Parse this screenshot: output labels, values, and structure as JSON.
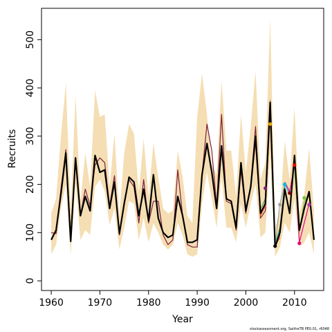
{
  "chart_data": {
    "type": "line",
    "title": "",
    "xlabel": "Year",
    "ylabel": "Recruits",
    "xlim": [
      1958,
      2016
    ],
    "ylim": [
      -20,
      565
    ],
    "x_ticks": [
      1960,
      1970,
      1980,
      1990,
      2000,
      2010
    ],
    "y_ticks": [
      0,
      100,
      200,
      300,
      400,
      500
    ],
    "grid": false,
    "band_color": "#F5DEB3",
    "band": {
      "x": [
        1960,
        1961,
        1962,
        1963,
        1964,
        1965,
        1966,
        1967,
        1968,
        1969,
        1970,
        1971,
        1972,
        1973,
        1974,
        1975,
        1976,
        1977,
        1978,
        1979,
        1980,
        1981,
        1982,
        1983,
        1984,
        1985,
        1986,
        1987,
        1988,
        1989,
        1990,
        1991,
        1992,
        1993,
        1994,
        1995,
        1996,
        1997,
        1998,
        1999,
        2000,
        2001,
        2002,
        2003,
        2004,
        2005,
        2006,
        2007,
        2008,
        2009,
        2010,
        2011,
        2012,
        2013,
        2014
      ],
      "lower": [
        55,
        75,
        150,
        200,
        55,
        200,
        85,
        105,
        95,
        195,
        210,
        185,
        115,
        150,
        65,
        110,
        165,
        160,
        85,
        130,
        80,
        120,
        100,
        75,
        65,
        75,
        120,
        95,
        55,
        50,
        55,
        160,
        225,
        170,
        110,
        215,
        110,
        110,
        80,
        160,
        110,
        160,
        200,
        90,
        100,
        260,
        50,
        70,
        120,
        100,
        170,
        70,
        80,
        100,
        55
      ],
      "upper": [
        140,
        170,
        300,
        410,
        145,
        385,
        165,
        265,
        195,
        395,
        340,
        345,
        195,
        305,
        135,
        265,
        325,
        305,
        185,
        295,
        175,
        285,
        215,
        150,
        140,
        145,
        270,
        215,
        135,
        120,
        340,
        430,
        345,
        240,
        220,
        415,
        270,
        270,
        175,
        345,
        225,
        320,
        435,
        210,
        245,
        545,
        110,
        145,
        290,
        210,
        360,
        140,
        180,
        275,
        145
      ]
    },
    "series": [
      {
        "color": "#000000",
        "x": [
          1960,
          1961,
          1962,
          1963,
          1964,
          1965,
          1966,
          1967,
          1968,
          1969,
          1970,
          1971,
          1972,
          1973,
          1974,
          1975,
          1976,
          1977,
          1978,
          1979,
          1980,
          1981,
          1982,
          1983,
          1984,
          1985,
          1986,
          1987,
          1988,
          1989,
          1990,
          1991,
          1992,
          1993,
          1994,
          1995,
          1996,
          1997,
          1998,
          1999,
          2000,
          2001,
          2002,
          2003,
          2004,
          2005,
          2006,
          2007,
          2008,
          2009,
          2010,
          2011,
          2012,
          2013,
          2014
        ],
        "y": [
          85,
          105,
          180,
          265,
          82,
          255,
          135,
          175,
          145,
          260,
          225,
          230,
          150,
          205,
          98,
          160,
          215,
          205,
          135,
          190,
          125,
          220,
          130,
          100,
          90,
          95,
          175,
          135,
          80,
          80,
          85,
          220,
          285,
          225,
          150,
          280,
          170,
          165,
          110,
          245,
          145,
          195,
          300,
          140,
          160,
          370,
          70,
          100,
          190,
          140,
          260,
          105,
          150,
          185,
          85
        ]
      },
      {
        "color": "#7B1E3B",
        "x": [
          1960,
          1961,
          1962,
          1963,
          1964,
          1965,
          1966,
          1967,
          1968,
          1969,
          1970,
          1971,
          1972,
          1973,
          1974,
          1975,
          1976,
          1977,
          1978,
          1979,
          1980,
          1981,
          1982,
          1983,
          1984,
          1985,
          1986,
          1987,
          1988,
          1989,
          1990,
          1991,
          1992,
          1993,
          1994,
          1995,
          1996,
          1997,
          1998,
          1999,
          2000,
          2001,
          2002,
          2003,
          2004,
          2005,
          2006,
          2007
        ],
        "y": [
          100,
          98,
          190,
          272,
          95,
          255,
          135,
          190,
          155,
          240,
          255,
          245,
          155,
          218,
          95,
          165,
          210,
          195,
          120,
          210,
          120,
          165,
          165,
          95,
          75,
          85,
          230,
          135,
          75,
          70,
          70,
          220,
          325,
          270,
          155,
          345,
          165,
          160,
          105,
          230,
          140,
          200,
          320,
          130,
          145,
          350,
          75,
          95
        ]
      },
      {
        "color": "#E8602C",
        "x": [
          2002,
          2003,
          2004,
          2005,
          2006,
          2007
        ],
        "y": [
          280,
          135,
          155,
          340,
          72,
          90
        ]
      },
      {
        "color": "#4EA24E",
        "x": [
          2003,
          2004,
          2005,
          2006,
          2007,
          2008
        ],
        "y": [
          148,
          170,
          355,
          75,
          110,
          195
        ]
      },
      {
        "color": "#A0A0A0",
        "x": [
          2004,
          2005,
          2006,
          2007,
          2008
        ],
        "y": [
          190,
          375,
          72,
          160,
          200
        ]
      },
      {
        "color": "#00B8E6",
        "x": [
          2005,
          2006,
          2007,
          2008,
          2009
        ],
        "y": [
          360,
          72,
          105,
          200,
          180
        ]
      },
      {
        "color": "#E6007E",
        "x": [
          2008,
          2009,
          2010,
          2011,
          2012,
          2013
        ],
        "y": [
          205,
          185,
          240,
          80,
          120,
          160
        ]
      },
      {
        "color": "#7FBF3F",
        "x": [
          2010,
          2011,
          2012,
          2013
        ],
        "y": [
          230,
          100,
          165,
          175
        ]
      }
    ],
    "end_points": [
      {
        "x": 2004,
        "y": 192,
        "color": "#7B1E7B"
      },
      {
        "x": 2005,
        "y": 325,
        "color": "#E6A800"
      },
      {
        "x": 2006,
        "y": 72,
        "color": "#000000"
      },
      {
        "x": 2007,
        "y": 158,
        "color": "#A0A0A0"
      },
      {
        "x": 2008,
        "y": 200,
        "color": "#00B8E6"
      },
      {
        "x": 2009,
        "y": 182,
        "color": "#800000"
      },
      {
        "x": 2010,
        "y": 240,
        "color": "#E60000"
      },
      {
        "x": 2011,
        "y": 78,
        "color": "#E6007E"
      },
      {
        "x": 2012,
        "y": 172,
        "color": "#7FBF3F"
      },
      {
        "x": 2013,
        "y": 158,
        "color": "#B03AB0"
      }
    ]
  },
  "footnote": "stockassessment.org, SaitheTB PE0.01, r6048"
}
